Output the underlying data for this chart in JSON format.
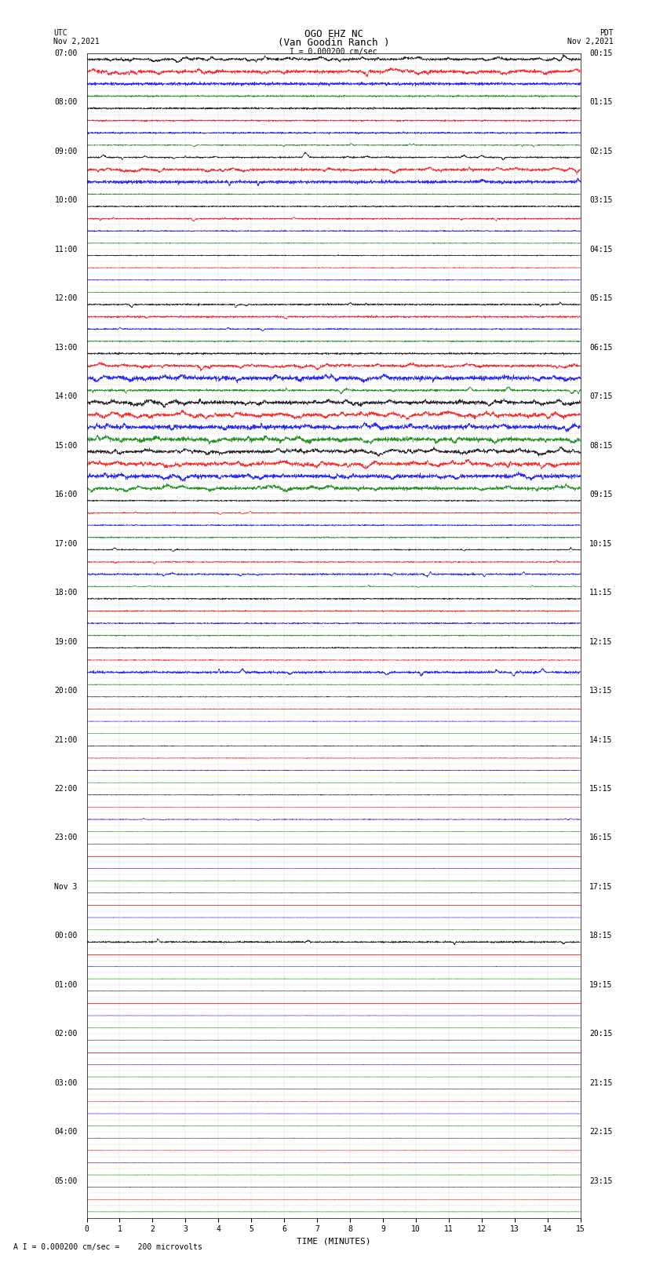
{
  "title_line1": "OGO EHZ NC",
  "title_line2": "(Van Goodin Ranch )",
  "scale_text": "I = 0.000200 cm/sec",
  "bottom_scale_text": "A I = 0.000200 cm/sec =    200 microvolts",
  "utc_label": "UTC",
  "utc_date": "Nov 2,2021",
  "pdt_label": "PDT",
  "pdt_date": "Nov 2,2021",
  "xlabel": "TIME (MINUTES)",
  "xmin": 0,
  "xmax": 15,
  "background_color": "white",
  "grid_color": "#aaaaaa",
  "text_color": "black",
  "title_fontsize": 9,
  "label_fontsize": 7,
  "tick_fontsize": 7
}
